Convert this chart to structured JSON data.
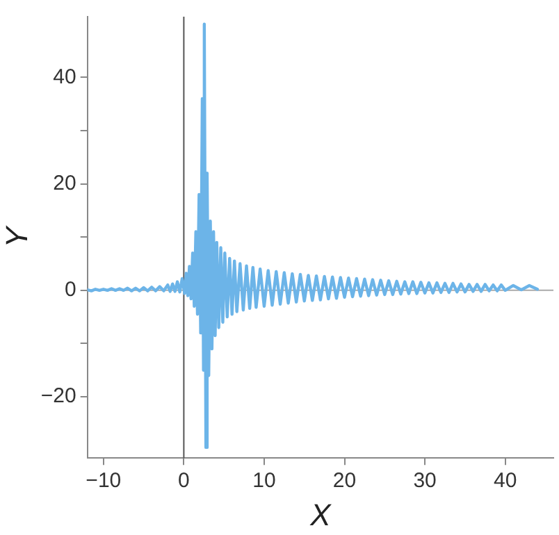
{
  "chart_data": {
    "type": "line",
    "xlabel": "X",
    "ylabel": "Y",
    "marker": "none",
    "grid": false,
    "legend": false,
    "xlim": [
      -12,
      46
    ],
    "ylim": [
      -31.5,
      51.4
    ],
    "xticks": [
      {
        "value": -10,
        "label": "−10"
      },
      0,
      10,
      20,
      30,
      40
    ],
    "yticks": [
      {
        "value": -20,
        "label": "−20"
      },
      {
        "value": -10,
        "label": null
      },
      0,
      {
        "value": 10,
        "label": null
      },
      20,
      {
        "value": 30,
        "label": null
      },
      40
    ],
    "ref_lines": [
      {
        "axis": "x",
        "value": 0,
        "color": "#555555"
      },
      {
        "axis": "y",
        "value": 0,
        "color": "#aaaaaa"
      }
    ],
    "series": [
      {
        "color": "#6cb4e8",
        "x": [
          -12,
          -11.5,
          -11,
          -10.5,
          -10,
          -9.5,
          -9,
          -8.5,
          -8,
          -7.5,
          -7,
          -6.5,
          -6,
          -5.5,
          -5,
          -4.5,
          -4,
          -3.5,
          -3,
          -2.5,
          -2,
          -1.7,
          -1.4,
          -1.1,
          -0.8,
          -0.5,
          -0.2,
          0.1,
          0.3,
          0.5,
          0.7,
          0.9,
          1.1,
          1.3,
          1.5,
          1.7,
          1.9,
          2.1,
          2.3,
          2.45,
          2.55,
          2.75,
          2.9,
          3.1,
          3.3,
          3.5,
          3.7,
          3.9,
          4.1,
          4.35,
          4.6,
          4.85,
          5.1,
          5.4,
          5.7,
          6,
          6.3,
          6.6,
          7,
          7.4,
          7.8,
          8.2,
          8.6,
          9,
          9.5,
          10,
          10.5,
          11,
          11.5,
          12,
          12.5,
          13,
          13.5,
          14,
          14.5,
          15,
          15.5,
          16,
          16.5,
          17,
          17.5,
          18,
          18.5,
          19,
          19.5,
          20,
          20.5,
          21,
          21.5,
          22,
          22.5,
          23,
          23.5,
          24,
          24.5,
          25,
          25.5,
          26,
          26.5,
          27,
          27.5,
          28,
          28.5,
          29,
          29.5,
          30,
          30.5,
          31,
          31.5,
          32,
          32.5,
          33,
          33.5,
          34,
          34.5,
          35,
          35.5,
          36,
          36.5,
          37,
          37.5,
          38,
          38.5,
          39,
          39.5,
          40,
          41,
          42,
          43,
          44
        ],
        "values": [
          0.1,
          -0.1,
          0.2,
          0,
          0.2,
          0,
          0.3,
          0,
          0.3,
          0,
          0.4,
          -0.1,
          0.4,
          -0.1,
          0.5,
          -0.1,
          0.6,
          -0.1,
          0.7,
          -0.1,
          1,
          -0.2,
          1.2,
          -0.2,
          1.6,
          -0.3,
          2.2,
          -0.6,
          3.2,
          -1,
          4.5,
          -1.6,
          7,
          -3,
          11,
          -4.5,
          18,
          -8,
          36,
          -15,
          50,
          -29.5,
          22,
          -16,
          13,
          -11,
          11,
          -8.5,
          9,
          -7,
          8,
          -6,
          7,
          -5,
          6,
          -4.5,
          5.5,
          -4,
          5,
          -3.7,
          4.6,
          -3.4,
          4.3,
          -3.2,
          4,
          -3,
          3.7,
          -2.8,
          3.5,
          -2.6,
          3.3,
          -2.4,
          3.1,
          -2.2,
          3,
          -2,
          2.8,
          -1.9,
          2.7,
          -1.8,
          2.6,
          -1.6,
          2.5,
          -1.5,
          2.4,
          -1.3,
          2.3,
          -1.2,
          2.2,
          -1.1,
          2.1,
          -1,
          2,
          -0.9,
          1.9,
          -0.8,
          1.8,
          -0.8,
          1.7,
          -0.7,
          1.6,
          -0.6,
          1.6,
          -0.6,
          1.5,
          -0.5,
          1.4,
          -0.5,
          1.4,
          -0.4,
          1.3,
          -0.4,
          1.3,
          -0.3,
          1.2,
          -0.3,
          1.1,
          -0.2,
          1.1,
          -0.2,
          1.1,
          -0.1,
          1,
          -0.1,
          1,
          0,
          0.9,
          0.1,
          0.9,
          0.2
        ]
      }
    ]
  }
}
